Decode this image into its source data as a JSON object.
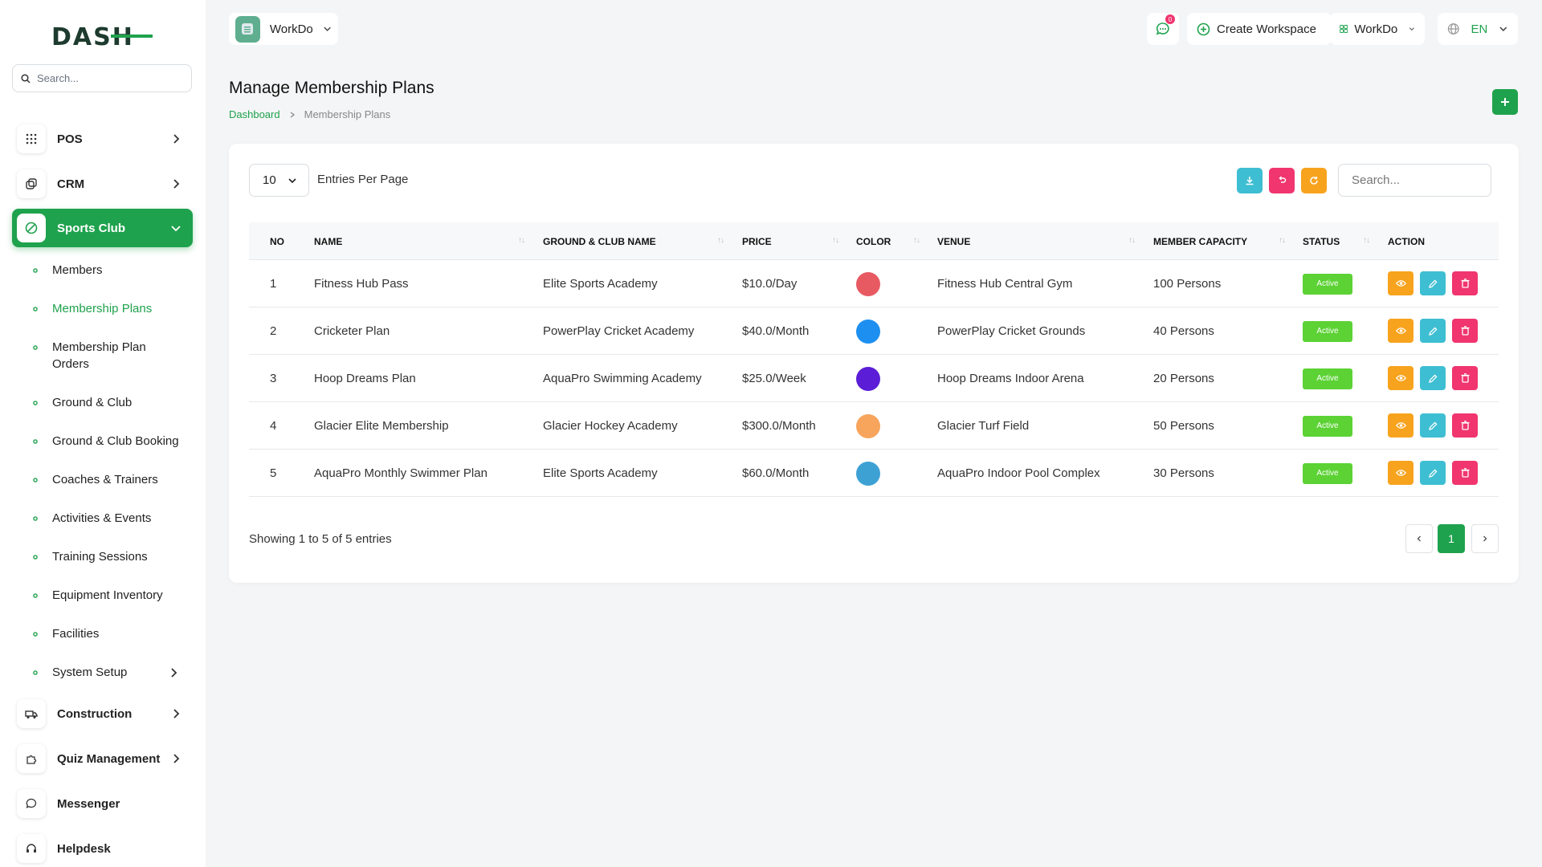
{
  "brand": {
    "logo_text": "DASH",
    "accent": "#1fa24d"
  },
  "sidebar": {
    "search_placeholder": "Search...",
    "items": [
      {
        "label": "POS"
      },
      {
        "label": "CRM"
      },
      {
        "label": "Sports Club"
      },
      {
        "label": "Construction"
      },
      {
        "label": "Quiz Management"
      },
      {
        "label": "Messenger"
      },
      {
        "label": "Helpdesk"
      }
    ],
    "sub_items": [
      {
        "label": "Members"
      },
      {
        "label": "Membership Plans"
      },
      {
        "label": "Membership Plan Orders"
      },
      {
        "label": "Ground & Club"
      },
      {
        "label": "Ground & Club Booking"
      },
      {
        "label": "Coaches & Trainers"
      },
      {
        "label": "Activities & Events"
      },
      {
        "label": "Training Sessions"
      },
      {
        "label": "Equipment Inventory"
      },
      {
        "label": "Facilities"
      },
      {
        "label": "System Setup"
      }
    ]
  },
  "topbar": {
    "workspace": "WorkDo",
    "notification_count": "0",
    "create_workspace": "Create Workspace",
    "company": "WorkDo",
    "language": "EN"
  },
  "page": {
    "title": "Manage Membership Plans",
    "breadcrumb": {
      "home": "Dashboard",
      "current": "Membership Plans"
    }
  },
  "table": {
    "per_page": "10",
    "per_page_label": "Entries Per Page",
    "search_placeholder": "Search...",
    "headers": [
      "NO",
      "NAME",
      "GROUND & CLUB NAME",
      "PRICE",
      "COLOR",
      "VENUE",
      "MEMBER CAPACITY",
      "STATUS",
      "ACTION"
    ],
    "rows": [
      {
        "no": "1",
        "name": "Fitness Hub Pass",
        "ground": "Elite Sports Academy",
        "price": "$10.0/Day",
        "color": "#e85a62",
        "venue": "Fitness Hub Central Gym",
        "capacity": "100 Persons",
        "status": "Active"
      },
      {
        "no": "2",
        "name": "Cricketer Plan",
        "ground": "PowerPlay Cricket Academy",
        "price": "$40.0/Month",
        "color": "#1d8ff0",
        "venue": "PowerPlay Cricket Grounds",
        "capacity": "40 Persons",
        "status": "Active"
      },
      {
        "no": "3",
        "name": "Hoop Dreams Plan",
        "ground": "AquaPro Swimming Academy",
        "price": "$25.0/Week",
        "color": "#5b1ed6",
        "venue": "Hoop Dreams Indoor Arena",
        "capacity": "20 Persons",
        "status": "Active"
      },
      {
        "no": "4",
        "name": "Glacier Elite Membership",
        "ground": "Glacier Hockey Academy",
        "price": "$300.0/Month",
        "color": "#f7a45c",
        "venue": "Glacier Turf Field",
        "capacity": "50 Persons",
        "status": "Active"
      },
      {
        "no": "5",
        "name": "AquaPro Monthly Swimmer Plan",
        "ground": "Elite Sports Academy",
        "price": "$60.0/Month",
        "color": "#3ea1d4",
        "venue": "AquaPro Indoor Pool Complex",
        "capacity": "30 Persons",
        "status": "Active"
      }
    ],
    "footer": "Showing 1 to 5 of 5 entries",
    "current_page": "1"
  },
  "colors": {
    "status_active": "#5cd234",
    "view_btn": "#f7a31e",
    "edit_btn": "#3ebed2",
    "delete_btn": "#f0356f",
    "download_btn": "#3ebed2",
    "reset_btn": "#f0356f",
    "refresh_btn": "#f7a31e"
  }
}
